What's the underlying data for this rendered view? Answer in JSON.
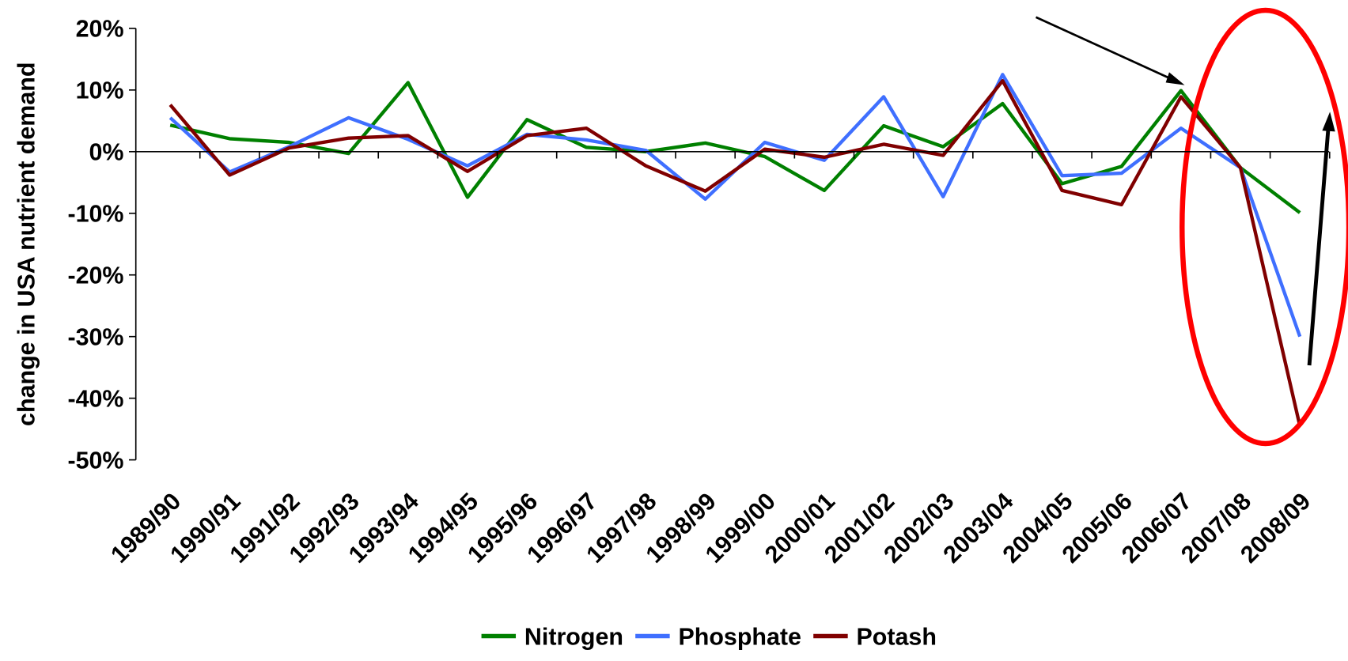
{
  "chart_data": {
    "type": "line",
    "y_label": "change in USA nutrient demand",
    "categories": [
      "1989/90",
      "1990/91",
      "1991/92",
      "1992/93",
      "1993/94",
      "1994/95",
      "1995/96",
      "1996/97",
      "1997/98",
      "1998/99",
      "1999/00",
      "2000/01",
      "2001/02",
      "2002/03",
      "2003/04",
      "2004/05",
      "2005/06",
      "2006/07",
      "2007/08",
      "2008/09"
    ],
    "series": [
      {
        "name": "Nitrogen",
        "color": "#008000",
        "values": [
          4.3,
          2.1,
          1.5,
          -0.3,
          11.2,
          -7.4,
          5.2,
          0.7,
          0,
          1.4,
          -0.8,
          -6.3,
          4.2,
          0.8,
          7.8,
          -5.2,
          -2.4,
          9.9,
          -2.6,
          -9.9
        ]
      },
      {
        "name": "Phosphate",
        "color": "#3f6fff",
        "values": [
          5.5,
          -3.3,
          0.8,
          5.5,
          2.0,
          -2.3,
          2.8,
          1.9,
          0.2,
          -7.7,
          1.5,
          -1.4,
          8.9,
          -7.3,
          12.5,
          -3.9,
          -3.5,
          3.8,
          -2.6,
          -30.0
        ]
      },
      {
        "name": "Potash",
        "color": "#800000",
        "values": [
          7.6,
          -3.8,
          0.6,
          2.2,
          2.6,
          -3.2,
          2.6,
          3.8,
          -2.3,
          -6.4,
          0.4,
          -0.9,
          1.2,
          -0.6,
          11.5,
          -6.3,
          -8.6,
          8.9,
          -2.6,
          -44.5
        ]
      }
    ],
    "ylim": [
      -50,
      20
    ],
    "yticks": [
      {
        "value": 20,
        "label": "20%"
      },
      {
        "value": 10,
        "label": "10%"
      },
      {
        "value": 0,
        "label": "0%"
      },
      {
        "value": -10,
        "label": "-10%"
      },
      {
        "value": -20,
        "label": "-20%"
      },
      {
        "value": -30,
        "label": "-30%"
      },
      {
        "value": -40,
        "label": "-40%"
      },
      {
        "value": -50,
        "label": "-50%"
      }
    ],
    "legend": "bottom"
  }
}
